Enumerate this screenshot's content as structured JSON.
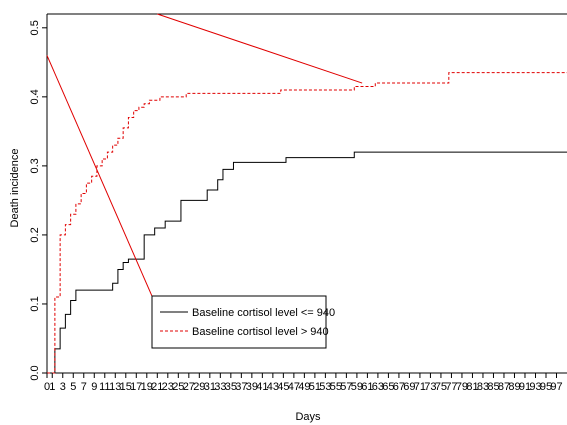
{
  "chart_data": {
    "type": "line",
    "title": "",
    "xlabel": "Days",
    "ylabel": "Death incidence",
    "xlim": [
      0,
      99
    ],
    "ylim": [
      0,
      0.52
    ],
    "x_ticks": [
      0,
      1,
      3,
      5,
      7,
      9,
      11,
      13,
      15,
      17,
      19,
      21,
      23,
      25,
      27,
      29,
      31,
      33,
      35,
      37,
      39,
      41,
      43,
      45,
      47,
      49,
      51,
      53,
      55,
      57,
      59,
      61,
      63,
      65,
      67,
      69,
      71,
      73,
      75,
      77,
      79,
      81,
      83,
      85,
      87,
      89,
      91,
      93,
      95,
      97
    ],
    "y_ticks": [
      0,
      0.1,
      0.2,
      0.3,
      0.4,
      0.5
    ],
    "y_tick_labels": [
      "0.0",
      "0.1",
      "0.2",
      "0.3",
      "0.4",
      "0.5"
    ],
    "grid": false,
    "legend_position": "center",
    "series": [
      {
        "name": "Baseline cortisol level <= 940",
        "color": "#000000",
        "style": "solid-step",
        "x": [
          0,
          1,
          1.5,
          2.5,
          3.5,
          4.5,
          5.5,
          12.5,
          13.5,
          14.5,
          15.5,
          18.5,
          20.5,
          22.5,
          25.5,
          30.5,
          32.5,
          33.5,
          35.5,
          45.5,
          58.5,
          99
        ],
        "y": [
          0,
          0,
          0.035,
          0.065,
          0.085,
          0.105,
          0.12,
          0.13,
          0.15,
          0.16,
          0.165,
          0.2,
          0.21,
          0.22,
          0.25,
          0.265,
          0.28,
          0.295,
          0.305,
          0.312,
          0.32,
          0.32
        ]
      },
      {
        "name": "Baseline cortisol level > 940",
        "color": "#e00000",
        "style": "dashed-step",
        "x": [
          0,
          1,
          1.5,
          2.5,
          3.5,
          4.5,
          5.5,
          6.5,
          7.5,
          8.5,
          9.5,
          10.5,
          11.5,
          12.5,
          13.5,
          14.5,
          15.5,
          16.5,
          17.5,
          18.5,
          19.5,
          21.5,
          26.5,
          44.5,
          58.5,
          62.5,
          76.5,
          99
        ],
        "y": [
          0,
          0,
          0.11,
          0.2,
          0.215,
          0.23,
          0.245,
          0.26,
          0.275,
          0.285,
          0.3,
          0.31,
          0.32,
          0.33,
          0.34,
          0.355,
          0.37,
          0.38,
          0.385,
          0.39,
          0.395,
          0.4,
          0.405,
          0.41,
          0.415,
          0.42,
          0.435,
          0.435
        ]
      }
    ],
    "annotations": [
      {
        "type": "line",
        "color": "#e00000",
        "x1": 21,
        "y1": 0.52,
        "x2": 60,
        "y2": 0.42
      },
      {
        "type": "line",
        "color": "#e00000",
        "x1": 0,
        "y1": 0.46,
        "x2": 21.5,
        "y2": 0.085
      }
    ]
  }
}
